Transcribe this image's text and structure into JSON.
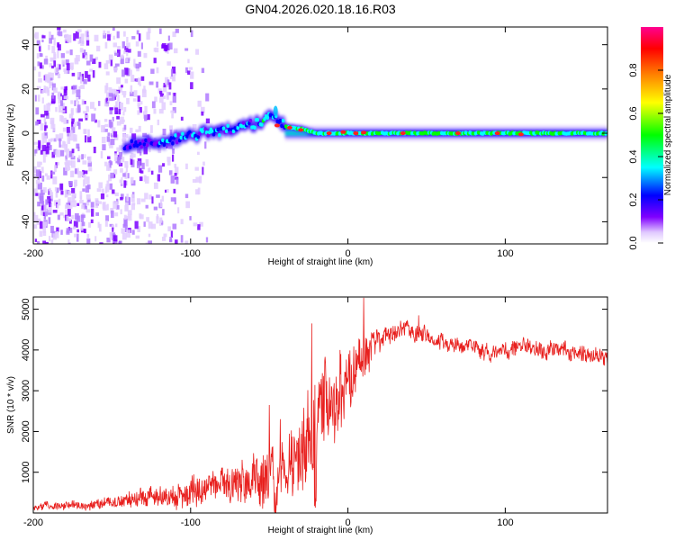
{
  "title": "GN04.2026.020.18.16.R03",
  "chart_data": [
    {
      "type": "heatmap",
      "title": "GN04.2026.020.18.16.R03",
      "xlabel": "Height of straight line (km)",
      "ylabel": "Frequency (Hz)",
      "xlim": [
        -200,
        165
      ],
      "ylim": [
        -50,
        48
      ],
      "x_ticks": [
        "-200",
        "-100",
        "0",
        "100"
      ],
      "x_tick_values": [
        -200,
        -100,
        0,
        100
      ],
      "y_ticks": [
        "40",
        "20",
        "0",
        "-20",
        "-40"
      ],
      "y_tick_values": [
        40,
        20,
        0,
        -20,
        -40
      ],
      "colorbar": {
        "label": "Normalized spectral amplitude",
        "range": [
          0,
          1
        ],
        "ticks": [
          "0.0",
          "0.2",
          "0.4",
          "0.6",
          "0.8"
        ],
        "tick_values": [
          0,
          0.2,
          0.4,
          0.6,
          0.8
        ],
        "colors": [
          "#ffffff",
          "#c8a0ff",
          "#8000ff",
          "#0000ff",
          "#00ffff",
          "#00ff00",
          "#ffff00",
          "#ff8000",
          "#ff0000",
          "#ff00a0"
        ]
      },
      "ridge": {
        "description": "spectral peak track",
        "x": [
          -140,
          -120,
          -100,
          -80,
          -60,
          -48,
          -45,
          -40,
          -30,
          -20,
          -10,
          0,
          20,
          40,
          60,
          80,
          100,
          120,
          140,
          165
        ],
        "frequency": [
          -5,
          -4,
          -1,
          1,
          4,
          8,
          6,
          3,
          2,
          0,
          0,
          0,
          0,
          0,
          0,
          0,
          0,
          0,
          0,
          0
        ]
      }
    },
    {
      "type": "line",
      "xlabel": "Height of straight line (km)",
      "ylabel": "SNR (10 * v/v)",
      "xlim": [
        -200,
        165
      ],
      "ylim": [
        0,
        5300
      ],
      "x_ticks": [
        "-200",
        "-100",
        "0",
        "100"
      ],
      "x_tick_values": [
        -200,
        -100,
        0,
        100
      ],
      "y_ticks": [
        "5000",
        "4000",
        "3000",
        "2000",
        "1000"
      ],
      "y_tick_values": [
        5000,
        4000,
        3000,
        2000,
        1000
      ],
      "series": [
        {
          "name": "SNR",
          "color": "#e8201e",
          "x": [
            -200,
            -180,
            -160,
            -140,
            -120,
            -100,
            -80,
            -60,
            -50,
            -40,
            -35,
            -30,
            -25,
            -20,
            -10,
            0,
            5,
            10,
            15,
            20,
            30,
            40,
            50,
            60,
            70,
            80,
            90,
            100,
            110,
            120,
            130,
            140,
            150,
            165
          ],
          "mean": [
            150,
            170,
            220,
            300,
            380,
            500,
            620,
            780,
            900,
            1000,
            1100,
            1400,
            1900,
            2300,
            2800,
            3200,
            3500,
            3800,
            4100,
            4300,
            4400,
            4450,
            4350,
            4200,
            4100,
            4000,
            3900,
            4000,
            4050,
            4100,
            4000,
            3950,
            3900,
            3850
          ],
          "spread": [
            70,
            80,
            100,
            160,
            200,
            300,
            350,
            500,
            650,
            750,
            850,
            1000,
            1000,
            1000,
            950,
            800,
            600,
            450,
            350,
            250,
            200,
            200,
            200,
            180,
            180,
            180,
            180,
            180,
            180,
            180,
            180,
            180,
            180,
            180
          ],
          "peaks": [
            {
              "x": -50,
              "y": 2650
            },
            {
              "x": -43,
              "y": 2300
            },
            {
              "x": -23,
              "y": 4650
            },
            {
              "x": -5,
              "y": 4000
            },
            {
              "x": 10,
              "y": 5280
            },
            {
              "x": 45,
              "y": 4850
            }
          ]
        }
      ]
    }
  ]
}
